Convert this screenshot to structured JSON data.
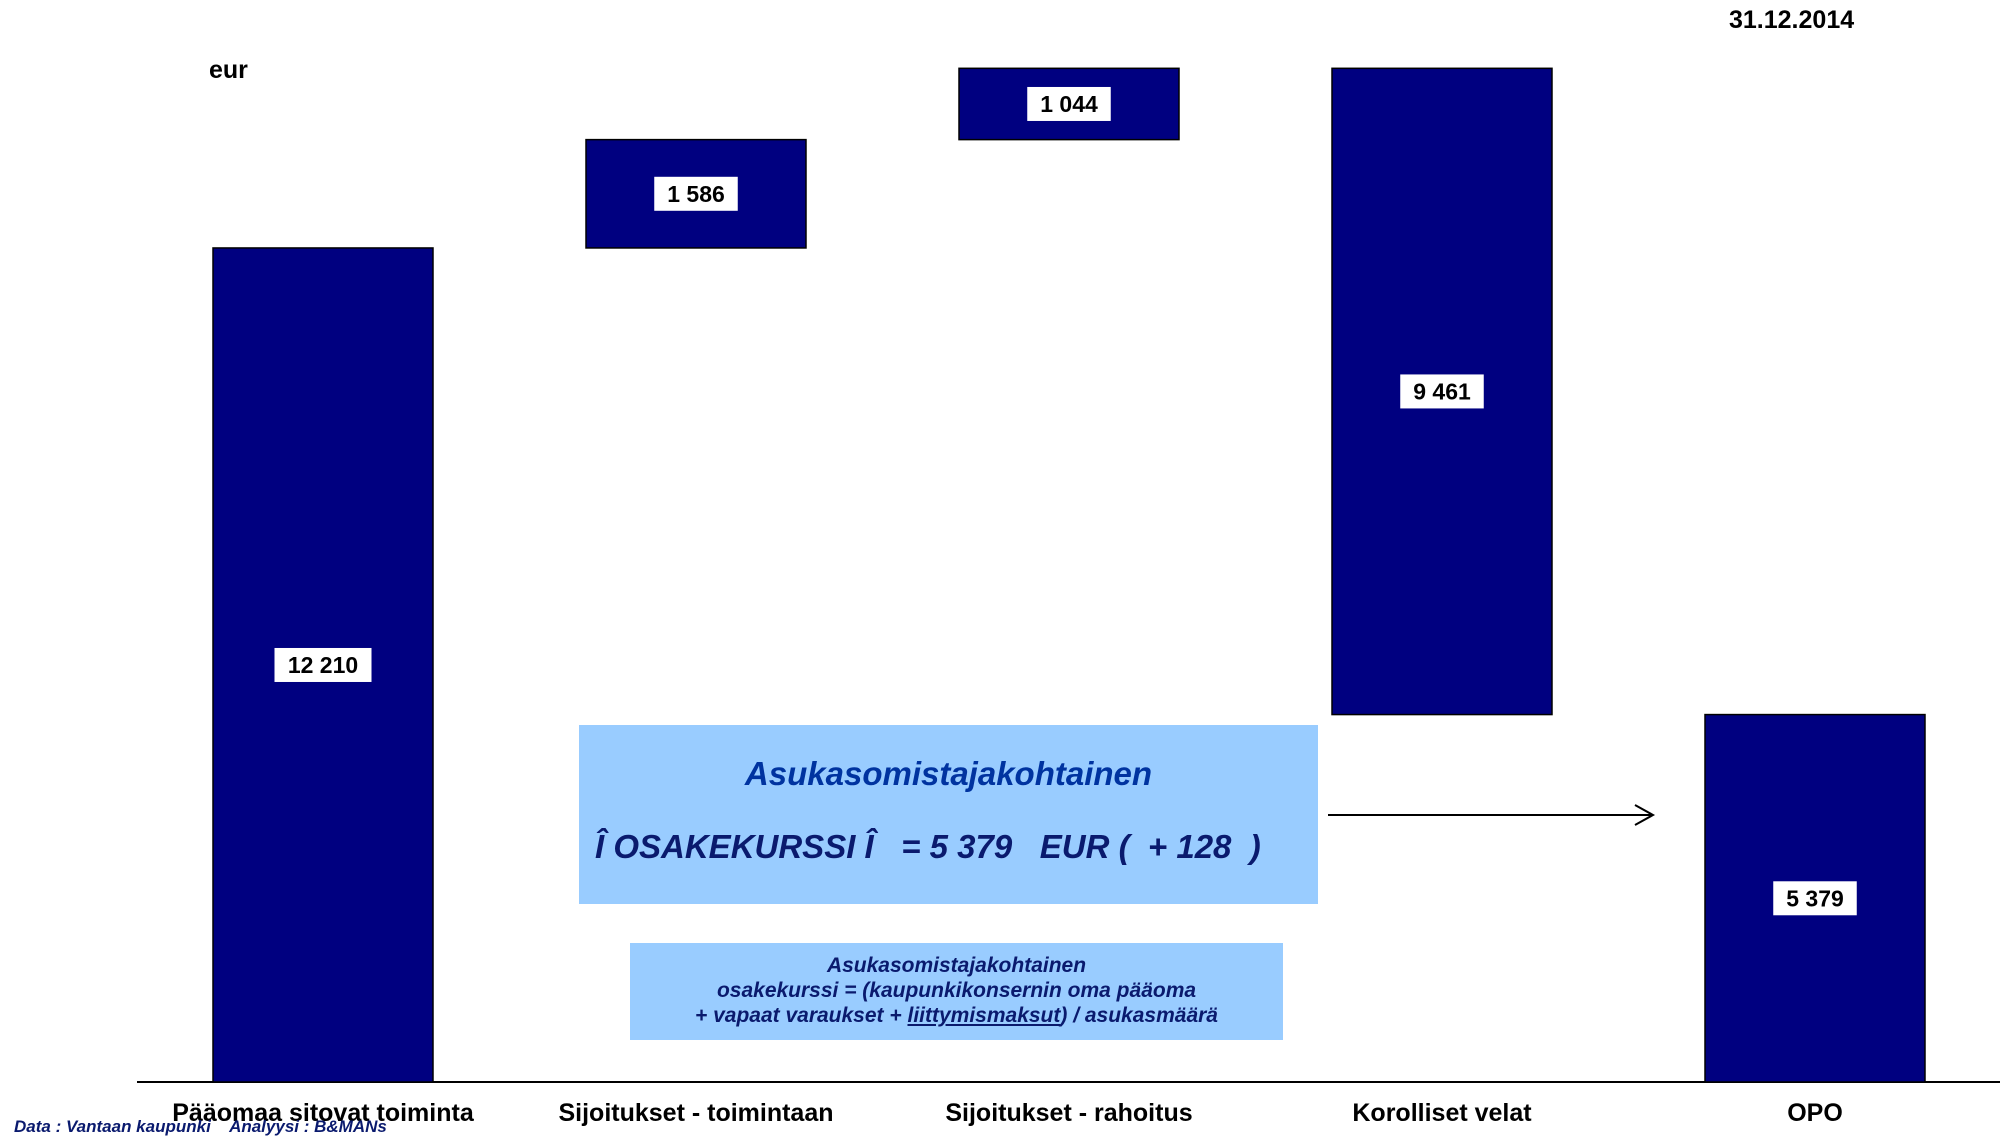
{
  "header": {
    "unit_label": "eur",
    "date_label": "31.12.2014"
  },
  "chart_data": {
    "type": "bar",
    "subtype": "waterfall",
    "categories": [
      "Pääomaa sitovat toiminta",
      "Sijoitukset - toimintaan",
      "Sijoitukset - rahoitus",
      "Korolliset velat",
      "OPO"
    ],
    "values": [
      12210,
      1586,
      1044,
      -9461,
      5379
    ],
    "value_labels": [
      "12 210",
      "1 586",
      "1 044",
      "9 461",
      "5 379"
    ],
    "bar_color": "#000080",
    "ylim": [
      0,
      15840
    ],
    "grid": false,
    "legend": "none"
  },
  "info_box": {
    "title": "Asukasomistajakohtainen",
    "value_line": "Î OSAKEKURSSI Î   = 5 379   EUR (  + 128  )"
  },
  "definition_box": {
    "line1": "Asukasomistajakohtainen",
    "line2": "osakekurssi = (kaupunkikonsernin oma pääoma",
    "line3_pre": "+ vapaat varaukset + ",
    "line3_underlined": "liittymismaksut",
    "line3_post": ") / asukasmäärä"
  },
  "footer": {
    "source": "Data : Vantaan kaupunki    Analyysi : B&MANs"
  }
}
